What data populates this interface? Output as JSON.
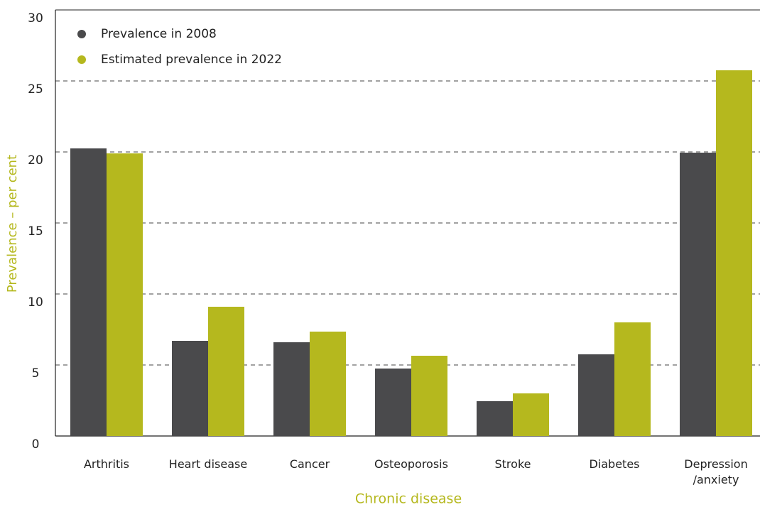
{
  "chart_data": {
    "type": "bar",
    "x_label": "Chronic disease",
    "y_label": "Prevalence – per cent",
    "categories": [
      "Arthritis",
      "Heart disease",
      "Cancer",
      "Osteoporosis",
      "Stroke",
      "Diabetes",
      "Depression\n/anxiety"
    ],
    "series": [
      {
        "name": "Prevalence in 2008",
        "color": "#4a4a4c",
        "values": [
          20.25,
          6.7,
          6.6,
          4.75,
          2.45,
          5.75,
          19.95
        ]
      },
      {
        "name": "Estimated prevalence in 2022",
        "color": "#b5b81e",
        "values": [
          19.9,
          9.1,
          7.35,
          5.65,
          3.0,
          8.0,
          25.75
        ]
      }
    ],
    "ylim": [
      0,
      30
    ],
    "yticks": [
      0,
      5,
      10,
      15,
      20,
      25,
      30
    ],
    "grid": true,
    "legend": "upper left"
  }
}
